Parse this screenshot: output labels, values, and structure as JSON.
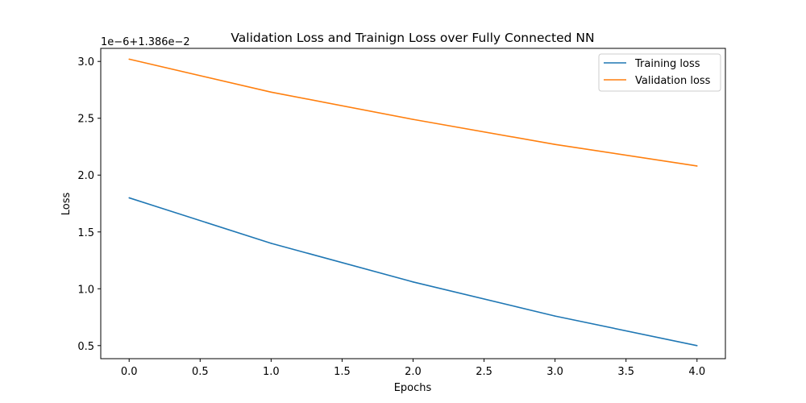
{
  "chart_data": {
    "type": "line",
    "title": "Validation Loss and Trainign Loss over Fully Connected NN",
    "xlabel": "Epochs",
    "ylabel": "Loss",
    "y_offset_label": "1e−6+1.386e−2",
    "x": [
      0,
      1,
      2,
      3,
      4
    ],
    "xlim": [
      -0.2,
      4.2
    ],
    "ylim": [
      0.385,
      3.115
    ],
    "xticks": [
      0.0,
      0.5,
      1.0,
      1.5,
      2.0,
      2.5,
      3.0,
      3.5,
      4.0
    ],
    "xtick_labels": [
      "0.0",
      "0.5",
      "1.0",
      "1.5",
      "2.0",
      "2.5",
      "3.0",
      "3.5",
      "4.0"
    ],
    "yticks": [
      0.5,
      1.0,
      1.5,
      2.0,
      2.5,
      3.0
    ],
    "ytick_labels": [
      "0.5",
      "1.0",
      "1.5",
      "2.0",
      "2.5",
      "3.0"
    ],
    "grid": false,
    "legend_position": "top-right",
    "series": [
      {
        "name": "Training loss",
        "color": "#1f77b4",
        "values": [
          1.8,
          1.4,
          1.06,
          0.76,
          0.5
        ]
      },
      {
        "name": "Validation loss",
        "color": "#ff7f0e",
        "values": [
          3.02,
          2.73,
          2.49,
          2.27,
          2.08
        ]
      }
    ]
  }
}
